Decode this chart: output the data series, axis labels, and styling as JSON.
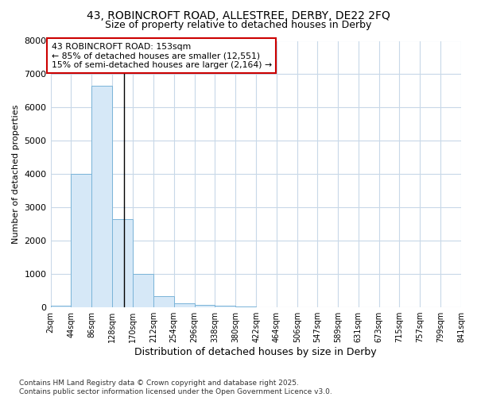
{
  "title1": "43, ROBINCROFT ROAD, ALLESTREE, DERBY, DE22 2FQ",
  "title2": "Size of property relative to detached houses in Derby",
  "xlabel": "Distribution of detached houses by size in Derby",
  "ylabel": "Number of detached properties",
  "bin_edges": [
    2,
    44,
    86,
    128,
    170,
    212,
    254,
    296,
    338,
    380,
    422,
    464,
    506,
    547,
    589,
    631,
    673,
    715,
    757,
    799,
    841
  ],
  "bar_heights": [
    60,
    4000,
    6650,
    2650,
    1000,
    330,
    130,
    80,
    40,
    15,
    8,
    5,
    4,
    3,
    2,
    2,
    1,
    1,
    1,
    1
  ],
  "bar_color": "#d6e8f7",
  "bar_edge_color": "#7ab4d8",
  "property_size": 153,
  "annotation_line1": "43 ROBINCROFT ROAD: 153sqm",
  "annotation_line2": "← 85% of detached houses are smaller (12,551)",
  "annotation_line3": "15% of semi-detached houses are larger (2,164) →",
  "vline_color": "#000000",
  "annotation_box_edge_color": "#cc0000",
  "plot_bg_color": "#ffffff",
  "grid_color": "#c8d8e8",
  "fig_bg_color": "#ffffff",
  "ylim": [
    0,
    8000
  ],
  "yticks": [
    0,
    1000,
    2000,
    3000,
    4000,
    5000,
    6000,
    7000,
    8000
  ],
  "footer1": "Contains HM Land Registry data © Crown copyright and database right 2025.",
  "footer2": "Contains public sector information licensed under the Open Government Licence v3.0."
}
